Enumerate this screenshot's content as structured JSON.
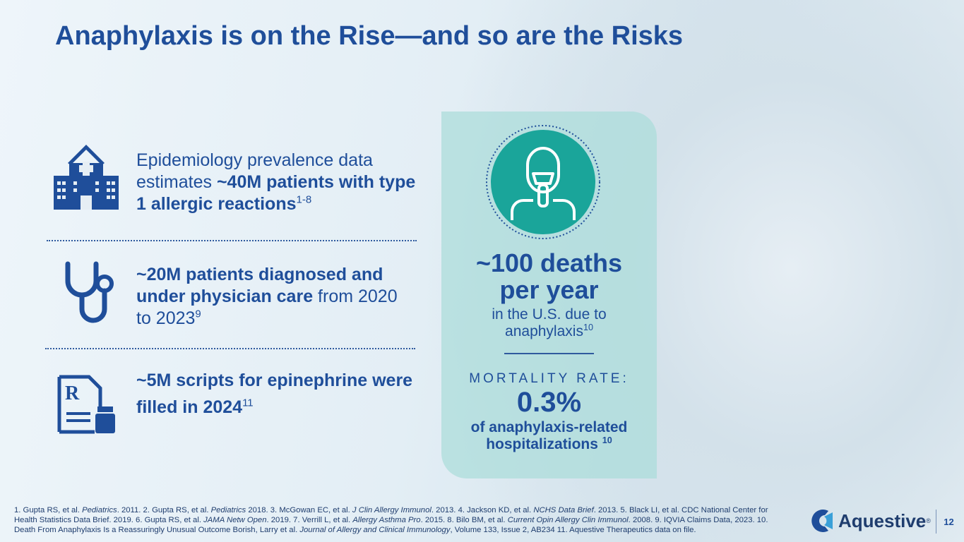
{
  "title": "Anaphylaxis is on the Rise—and so are the Risks",
  "stats": [
    {
      "lead": "Epidemiology prevalence data estimates ",
      "bold": "~40M patients with type 1 allergic reactions",
      "ref": "1-8"
    },
    {
      "bold": "~20M patients diagnosed and under physician care",
      "tail": " from 2020 to 2023",
      "ref": "9"
    },
    {
      "bold": "~5M scripts for epinephrine were filled in 2024",
      "ref": "11"
    }
  ],
  "callout": {
    "headline": "~100 deaths per year",
    "detail": "in the U.S. due to anaphylaxis",
    "detail_ref": "10",
    "rate_label": "MORTALITY RATE:",
    "rate": "0.3%",
    "rate_detail": "of anaphylaxis-related hospitalizations",
    "rate_ref": "10"
  },
  "footnotes": [
    "1. Gupta RS, et al. ",
    "Pediatrics",
    ". 2011. 2. Gupta RS, et al. ",
    "Pediatrics",
    " 2018. 3. McGowan EC, et al. ",
    "J Clin Allergy Immunol",
    ". 2013. 4. Jackson KD, et al. ",
    "NCHS Data Brief",
    ". 2013. 5. Black LI, et al. CDC National Center for Health Statistics Data Brief. 2019. 6. Gupta RS, et al. ",
    "JAMA Netw Open",
    ". 2019. 7. Verrill L, et al. ",
    "Allergy Asthma Pro",
    ". 2015. 8. Bilo BM, et al. ",
    "Current Opin Allergy Clin Immunol",
    ". 2008. 9. IQVIA Claims Data, 2023.  10. Death From Anaphylaxis Is a Reassuringly Unusual Outcome Borish, Larry et al. ",
    "Journal of Allergy and Clinical Immunology",
    ", Volume 133, Issue 2, AB234  11. Aquestive Therapeutics data on file."
  ],
  "logo": "Aquestive",
  "logo_mark": "®",
  "page_number": "12"
}
